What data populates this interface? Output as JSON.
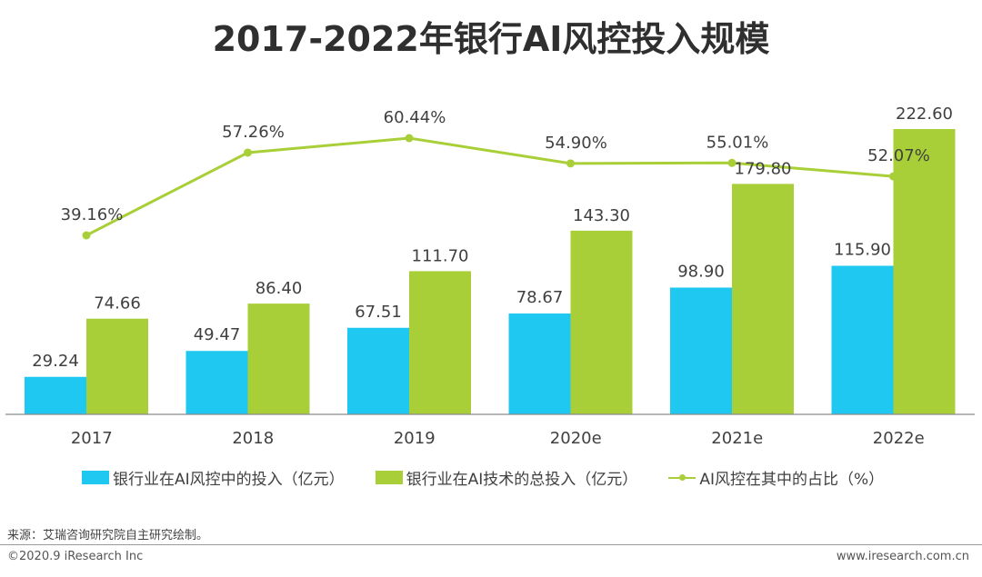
{
  "header": {
    "title": "2017-2022年银行AI风控投入规模"
  },
  "chart_data": {
    "type": "bar",
    "title": "2017-2022年银行AI风控投入规模",
    "categories": [
      "2017",
      "2018",
      "2019",
      "2020e",
      "2021e",
      "2022e"
    ],
    "series": [
      {
        "name": "银行业在AI风控中的投入（亿元）",
        "type": "bar",
        "color": "#1ec8f0",
        "values": [
          29.24,
          49.47,
          67.51,
          78.67,
          98.9,
          115.9
        ],
        "labels": [
          "29.24",
          "49.47",
          "67.51",
          "78.67",
          "98.90",
          "115.90"
        ]
      },
      {
        "name": "银行业在AI技术的总投入（亿元）",
        "type": "bar",
        "color": "#a9cf38",
        "values": [
          74.66,
          86.4,
          111.7,
          143.3,
          179.8,
          222.6
        ],
        "labels": [
          "74.66",
          "86.40",
          "111.70",
          "143.30",
          "179.80",
          "222.60"
        ]
      },
      {
        "name": "AI风控在其中的占比（%）",
        "type": "line",
        "color": "#a9cf38",
        "values": [
          39.16,
          57.26,
          60.44,
          54.9,
          55.01,
          52.07
        ],
        "labels": [
          "39.16%",
          "57.26%",
          "60.44%",
          "54.90%",
          "55.01%",
          "52.07%"
        ]
      }
    ],
    "grid": false,
    "legend": "bottom"
  },
  "footer": {
    "source": "来源：艾瑞咨询研究院自主研究绘制。",
    "copyright": "©2020.9 iResearch Inc",
    "website": "www.iresearch.com.cn"
  }
}
